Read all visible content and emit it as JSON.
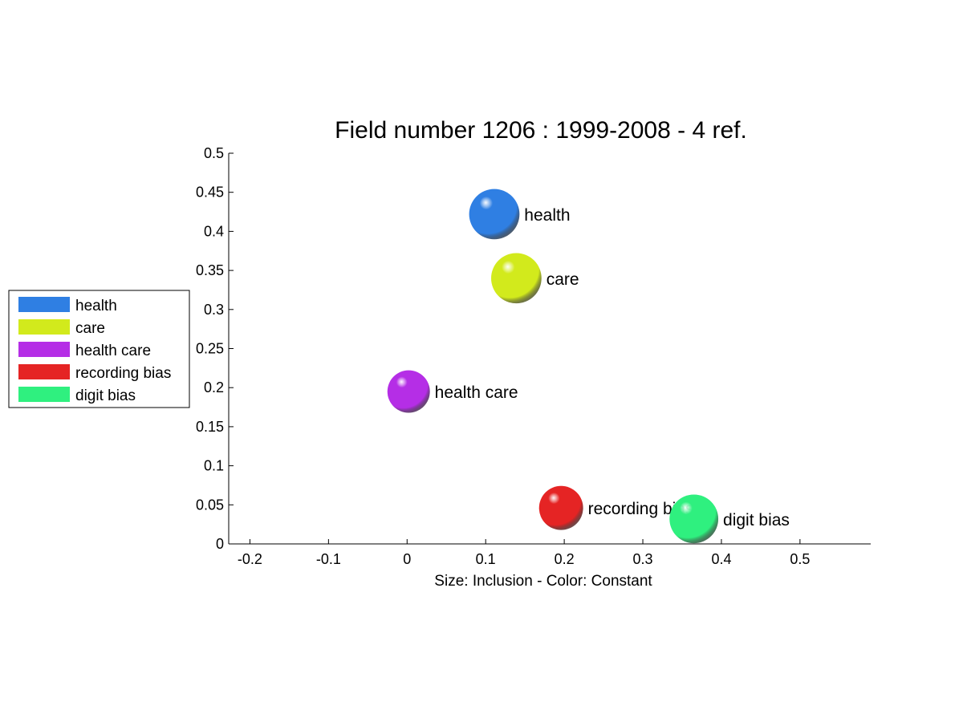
{
  "chart_data": {
    "type": "scatter",
    "title": "Field number 1206 : 1999-2008  - 4 ref.",
    "xlabel": "Size: Inclusion - Color: Constant",
    "ylabel": "",
    "xlim": [
      -0.227,
      0.59
    ],
    "ylim": [
      0,
      0.5
    ],
    "xticks": [
      -0.2,
      -0.1,
      0,
      0.1,
      0.2,
      0.3,
      0.4,
      0.5
    ],
    "xtick_labels": [
      "-0.2",
      "-0.1",
      "0",
      "0.1",
      "0.2",
      "0.3",
      "0.4",
      "0.5"
    ],
    "yticks": [
      0,
      0.05,
      0.1,
      0.15,
      0.2,
      0.25,
      0.3,
      0.35,
      0.4,
      0.45,
      0.5
    ],
    "ytick_labels": [
      "0",
      "0.05",
      "0.1",
      "0.15",
      "0.2",
      "0.25",
      "0.3",
      "0.35",
      "0.4",
      "0.45",
      "0.5"
    ],
    "grid": false,
    "legend_position": "left",
    "marker": "sphere",
    "series": [
      {
        "name": "health",
        "x": 0.111,
        "y": 0.422,
        "size": 0.032,
        "color": "#2f7fe3"
      },
      {
        "name": "care",
        "x": 0.139,
        "y": 0.34,
        "size": 0.032,
        "color": "#d2ea1c"
      },
      {
        "name": "health care",
        "x": 0.002,
        "y": 0.195,
        "size": 0.027,
        "color": "#b52ee6"
      },
      {
        "name": "recording bias",
        "x": 0.196,
        "y": 0.046,
        "size": 0.028,
        "color": "#e52424"
      },
      {
        "name": "digit bias",
        "x": 0.365,
        "y": 0.032,
        "size": 0.031,
        "color": "#2ff07f"
      }
    ]
  }
}
